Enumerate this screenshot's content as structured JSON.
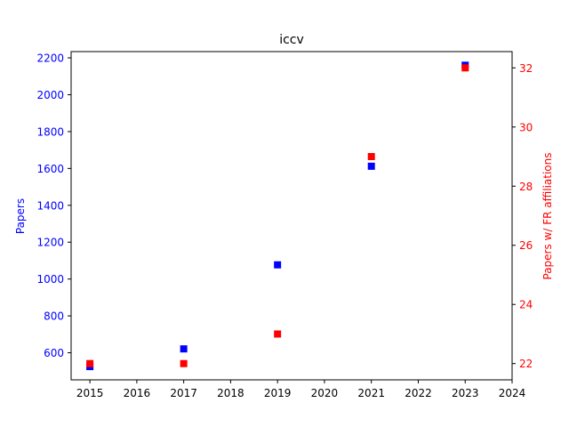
{
  "chart_data": {
    "type": "scatter",
    "title": "iccv",
    "xlabel": "",
    "ylabel_left": "Papers",
    "ylabel_right": "Papers w/ FR affiliations",
    "xlim": [
      2014.6,
      2024.0
    ],
    "ylim_left": [
      453,
      2234
    ],
    "ylim_right": [
      21.45,
      32.55
    ],
    "x_ticks": [
      "2015",
      "2016",
      "2017",
      "2018",
      "2019",
      "2020",
      "2021",
      "2022",
      "2023",
      "2024"
    ],
    "y_left_ticks": [
      "600",
      "800",
      "1000",
      "1200",
      "1400",
      "1600",
      "1800",
      "2000",
      "2200"
    ],
    "y_right_ticks": [
      "22",
      "24",
      "26",
      "28",
      "30",
      "32"
    ],
    "grid": false,
    "series": [
      {
        "axis": "left",
        "color": "#0000ff",
        "marker": "square",
        "x": [
          2015,
          2017,
          2019,
          2021,
          2023
        ],
        "y": [
          525,
          621,
          1077,
          1612,
          2160
        ]
      },
      {
        "axis": "right",
        "color": "#ff0000",
        "marker": "square",
        "x": [
          2015,
          2017,
          2019,
          2021,
          2023
        ],
        "y": [
          22,
          22,
          23,
          29,
          32
        ]
      }
    ]
  }
}
